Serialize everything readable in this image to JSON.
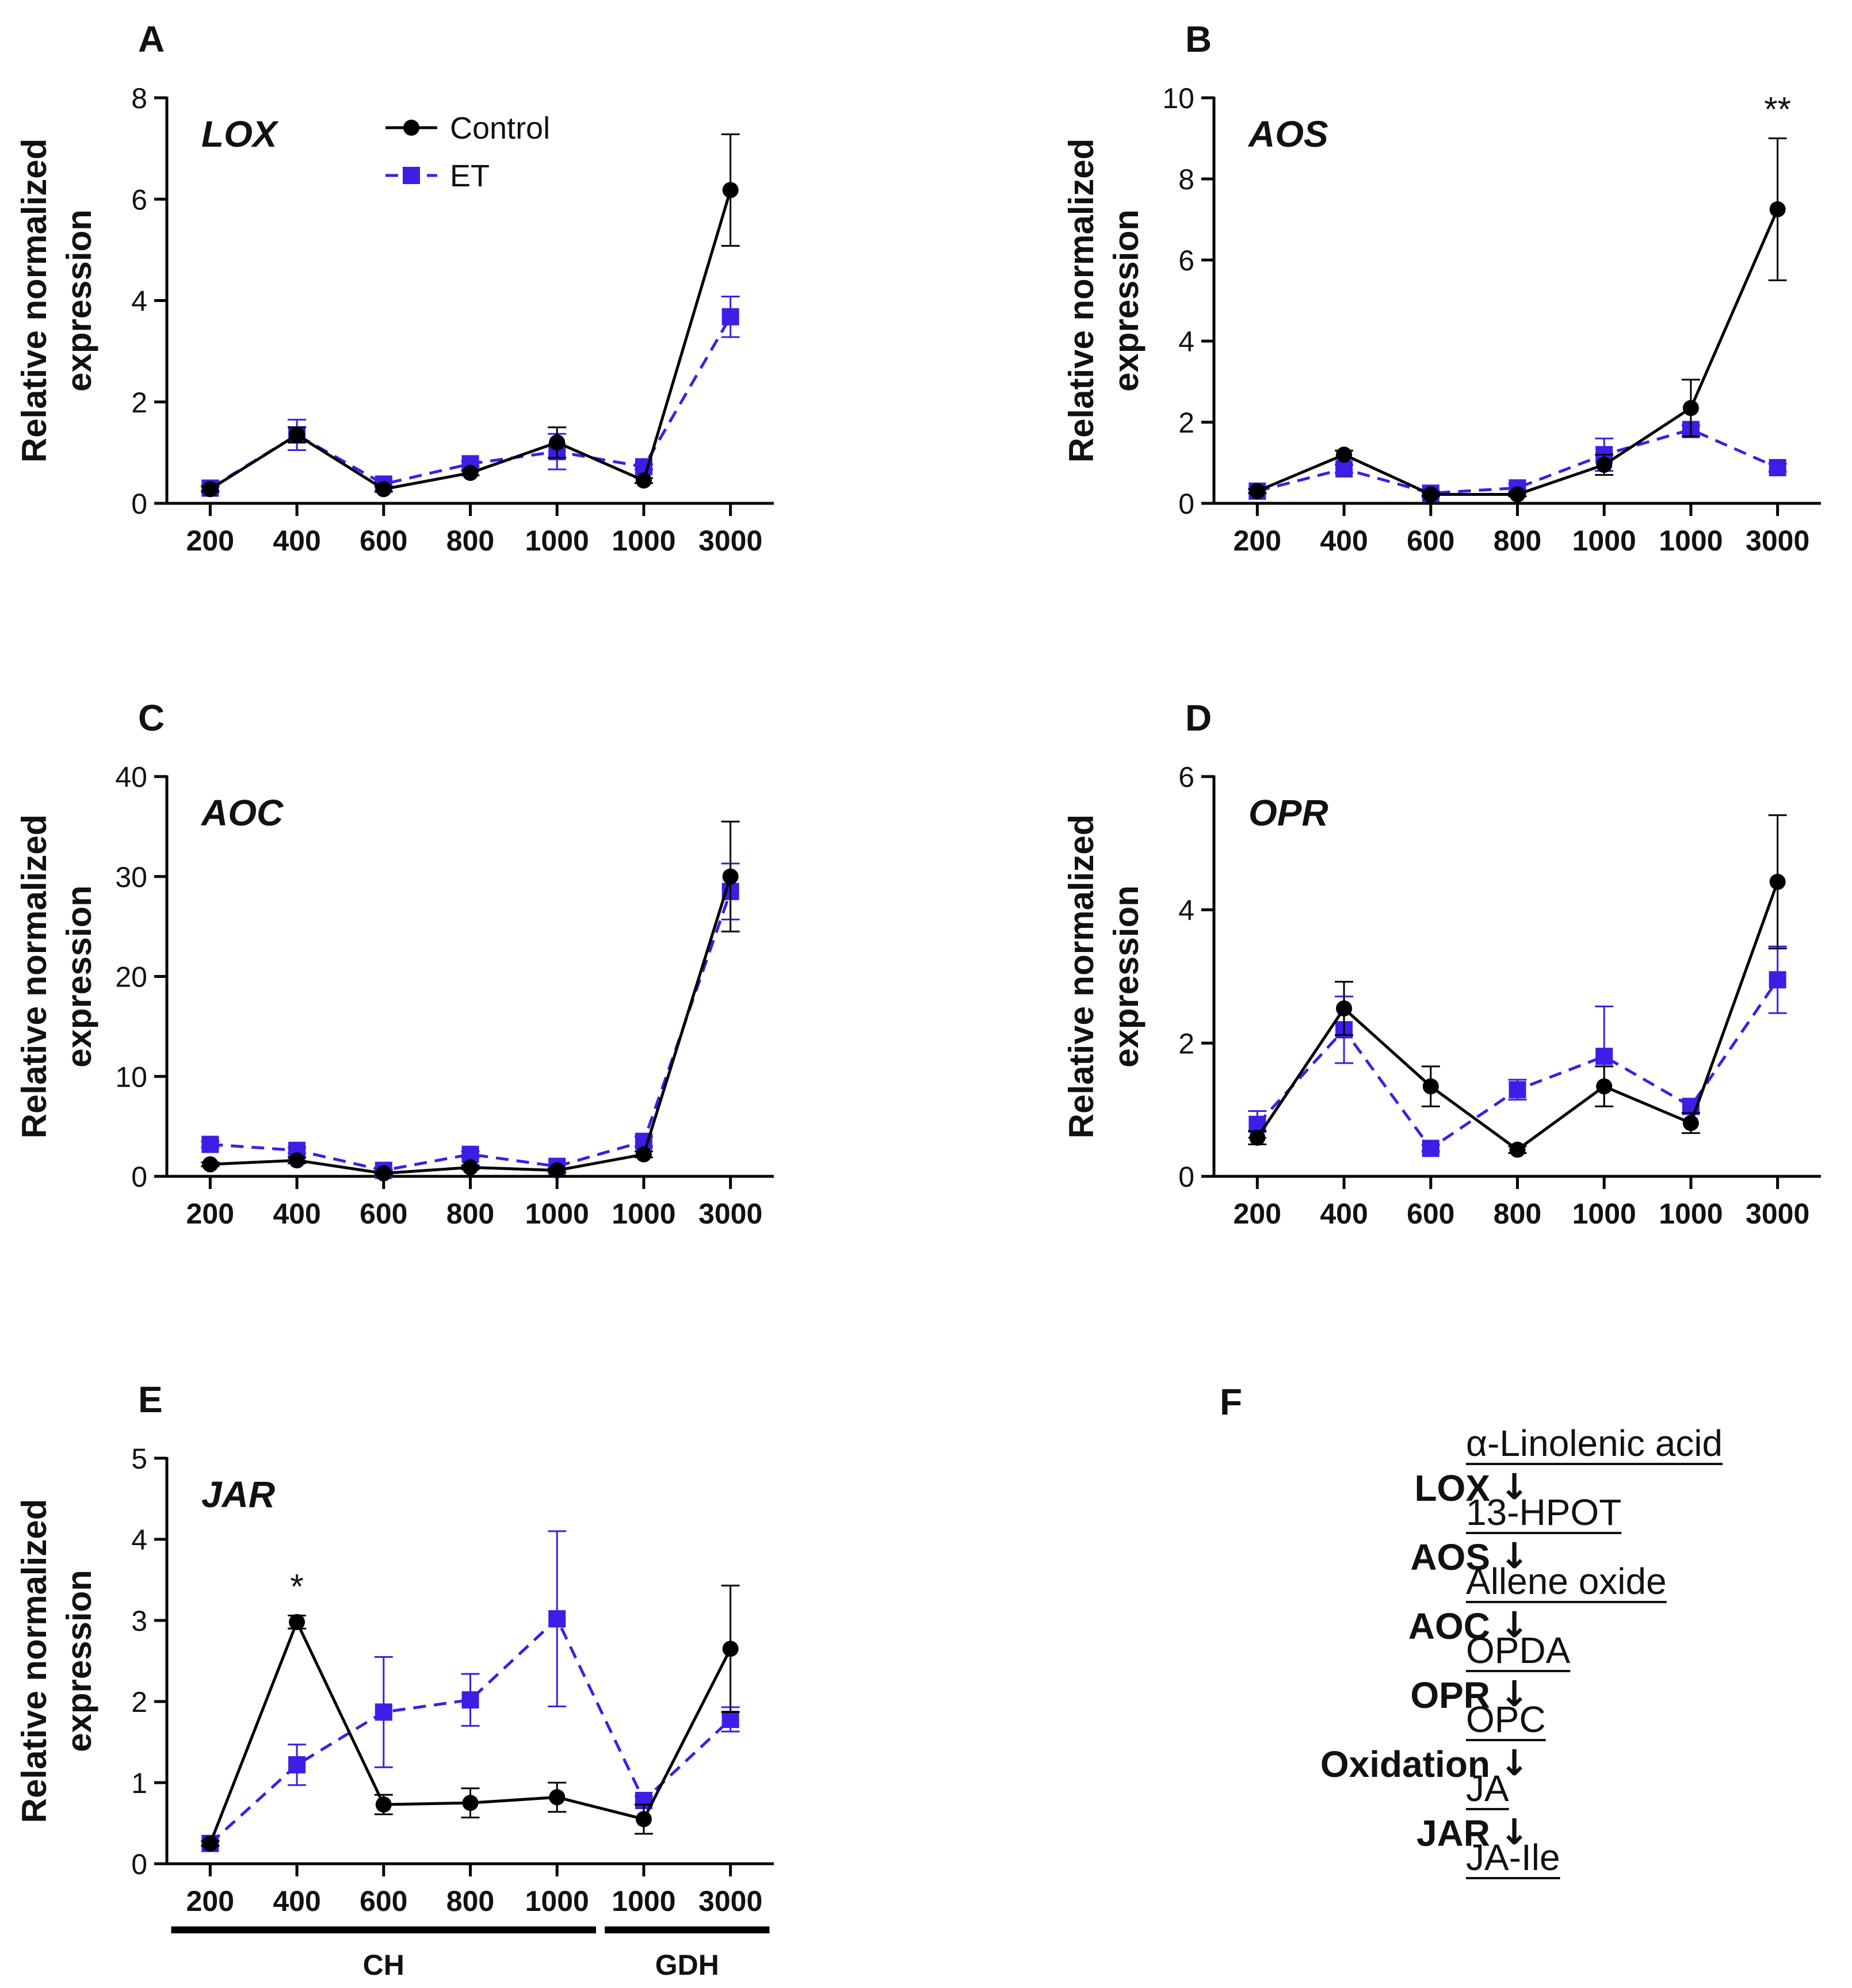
{
  "legend": {
    "control_label": "Control",
    "et_label": "ET"
  },
  "colors": {
    "control": "#000000",
    "et": "#3c1ee6"
  },
  "chart_data": [
    {
      "panel": "A",
      "type": "line",
      "gene": "LOX",
      "categories": [
        "200",
        "400",
        "600",
        "800",
        "1000",
        "1000",
        "3000"
      ],
      "ylim": [
        0,
        8
      ],
      "yticks": [
        0,
        2,
        4,
        6,
        8
      ],
      "ylabel_line1": "Relative normalized",
      "ylabel_line2": "expression",
      "series": [
        {
          "name": "Control",
          "values": [
            0.28,
            1.35,
            0.28,
            0.6,
            1.2,
            0.45,
            6.18
          ],
          "errors": [
            0.05,
            0.15,
            0.05,
            0.05,
            0.3,
            0.05,
            1.1
          ]
        },
        {
          "name": "ET",
          "values": [
            0.3,
            1.35,
            0.38,
            0.78,
            1.02,
            0.72,
            3.68
          ],
          "errors": [
            0.05,
            0.3,
            0.05,
            0.05,
            0.35,
            0.05,
            0.4
          ]
        }
      ],
      "annotations": []
    },
    {
      "panel": "B",
      "type": "line",
      "gene": "AOS",
      "categories": [
        "200",
        "400",
        "600",
        "800",
        "1000",
        "1000",
        "3000"
      ],
      "ylim": [
        0,
        10
      ],
      "yticks": [
        0,
        2,
        4,
        6,
        8,
        10
      ],
      "ylabel_line1": "Relative normalized",
      "ylabel_line2": "expression",
      "series": [
        {
          "name": "Control",
          "values": [
            0.3,
            1.2,
            0.22,
            0.22,
            0.95,
            2.35,
            7.25
          ],
          "errors": [
            0.05,
            0.1,
            0.05,
            0.05,
            0.25,
            0.7,
            1.75
          ]
        },
        {
          "name": "ET",
          "values": [
            0.3,
            0.85,
            0.25,
            0.38,
            1.2,
            1.82,
            0.88
          ],
          "errors": [
            0.05,
            0.1,
            0.05,
            0.1,
            0.4,
            0.1,
            0.1
          ]
        }
      ],
      "annotations": [
        {
          "category_index": 6,
          "text": "**"
        }
      ]
    },
    {
      "panel": "C",
      "type": "line",
      "gene": "AOC",
      "categories": [
        "200",
        "400",
        "600",
        "800",
        "1000",
        "1000",
        "3000"
      ],
      "ylim": [
        0,
        40
      ],
      "yticks": [
        0,
        10,
        20,
        30,
        40
      ],
      "ylabel_line1": "Relative normalized",
      "ylabel_line2": "expression",
      "series": [
        {
          "name": "Control",
          "values": [
            1.2,
            1.6,
            0.3,
            0.9,
            0.6,
            2.2,
            30.0
          ],
          "errors": [
            0.2,
            0.3,
            0.1,
            0.2,
            0.2,
            0.3,
            5.5
          ]
        },
        {
          "name": "ET",
          "values": [
            3.2,
            2.6,
            0.6,
            2.2,
            1.0,
            3.5,
            28.5
          ],
          "errors": [
            0.3,
            0.3,
            0.1,
            0.3,
            0.2,
            0.5,
            2.8
          ]
        }
      ],
      "annotations": []
    },
    {
      "panel": "D",
      "type": "line",
      "gene": "OPR",
      "categories": [
        "200",
        "400",
        "600",
        "800",
        "1000",
        "1000",
        "3000"
      ],
      "ylim": [
        0,
        6
      ],
      "yticks": [
        0,
        2,
        4,
        6
      ],
      "ylabel_line1": "Relative normalized",
      "ylabel_line2": "expression",
      "series": [
        {
          "name": "Control",
          "values": [
            0.58,
            2.52,
            1.35,
            0.4,
            1.35,
            0.8,
            4.42
          ],
          "errors": [
            0.1,
            0.4,
            0.3,
            0.05,
            0.3,
            0.15,
            1.0
          ]
        },
        {
          "name": "ET",
          "values": [
            0.78,
            2.2,
            0.42,
            1.3,
            1.8,
            1.05,
            2.95
          ],
          "errors": [
            0.2,
            0.5,
            0.05,
            0.15,
            0.75,
            0.1,
            0.5
          ]
        }
      ],
      "annotations": []
    },
    {
      "panel": "E",
      "type": "line",
      "gene": "JAR",
      "categories": [
        "200",
        "400",
        "600",
        "800",
        "1000",
        "1000",
        "3000"
      ],
      "ylim": [
        0,
        5
      ],
      "yticks": [
        0,
        1,
        2,
        3,
        4,
        5
      ],
      "ylabel_line1": "Relative normalized",
      "ylabel_line2": "expression",
      "series": [
        {
          "name": "Control",
          "values": [
            0.25,
            2.98,
            0.73,
            0.75,
            0.82,
            0.55,
            2.65
          ],
          "errors": [
            0.03,
            0.08,
            0.12,
            0.18,
            0.18,
            0.18,
            0.78
          ]
        },
        {
          "name": "ET",
          "values": [
            0.25,
            1.22,
            1.87,
            2.02,
            3.02,
            0.78,
            1.78
          ],
          "errors": [
            0.03,
            0.25,
            0.68,
            0.32,
            1.08,
            0.05,
            0.15
          ]
        }
      ],
      "annotations": [
        {
          "category_index": 1,
          "text": "*"
        }
      ],
      "groups": [
        {
          "label": "CH",
          "from_index": 0,
          "to_index": 4
        },
        {
          "label": "GDH",
          "from_index": 5,
          "to_index": 6
        }
      ]
    }
  ],
  "pathway": {
    "label": "F",
    "compounds": [
      "α-Linolenic acid",
      "13-HPOT",
      "Allene oxide",
      "OPDA",
      "OPC",
      "JA",
      "JA-Ile"
    ],
    "enzymes": [
      "LOX",
      "AOS",
      "AOC",
      "OPR",
      "Oxidation",
      "JAR"
    ],
    "arrow_glyph": "↓"
  }
}
